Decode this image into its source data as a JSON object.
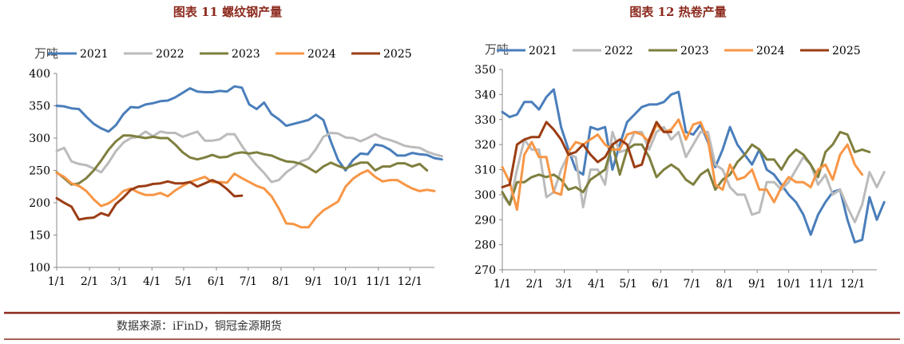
{
  "source": "数据来源：iFinD，铜冠金源期货",
  "colors": {
    "2021": "#4a7ebb",
    "2022": "#bbbbbb",
    "2023": "#7f7f3f",
    "2024": "#f79646",
    "2025": "#9b3d14",
    "title": "#8c2a1e",
    "divider": "#8c2a1e"
  },
  "chart_data": [
    {
      "type": "line",
      "title": "图表 11  螺纹钢产量",
      "ylabel": "万吨",
      "ylim": [
        100,
        400
      ],
      "yticks": [
        100,
        150,
        200,
        250,
        300,
        350,
        400
      ],
      "xlim": [
        0,
        51
      ],
      "x_ticks": [
        {
          "label": "1/1",
          "week": 0
        },
        {
          "label": "2/1",
          "week": 4.43
        },
        {
          "label": "3/1",
          "week": 8.43
        },
        {
          "label": "4/1",
          "week": 12.86
        },
        {
          "label": "5/1",
          "week": 17.14
        },
        {
          "label": "6/1",
          "week": 21.57
        },
        {
          "label": "7/1",
          "week": 25.86
        },
        {
          "label": "8/1",
          "week": 30.29
        },
        {
          "label": "9/1",
          "week": 34.71
        },
        {
          "label": "10/1",
          "week": 39.0
        },
        {
          "label": "11/1",
          "week": 43.43
        },
        {
          "label": "12/1",
          "week": 47.71
        }
      ],
      "legend": [
        "2021",
        "2022",
        "2023",
        "2024",
        "2025"
      ],
      "series": [
        {
          "name": "2021",
          "x_start": 0,
          "values": [
            350,
            349,
            346,
            345,
            333,
            322,
            315,
            310,
            320,
            337,
            348,
            347,
            352,
            354,
            357,
            358,
            363,
            370,
            377,
            372,
            371,
            371,
            373,
            372,
            380,
            378,
            352,
            345,
            355,
            337,
            329,
            319,
            322,
            325,
            328,
            336,
            328,
            295,
            266,
            250,
            266,
            276,
            275,
            290,
            288,
            282,
            273,
            273,
            277,
            275,
            274,
            269,
            267
          ]
        },
        {
          "name": "2022",
          "x_start": 0,
          "values": [
            280,
            285,
            264,
            260,
            258,
            253,
            247,
            262,
            280,
            293,
            300,
            302,
            310,
            303,
            310,
            308,
            308,
            302,
            306,
            310,
            296,
            296,
            298,
            306,
            306,
            288,
            272,
            258,
            246,
            232,
            235,
            247,
            255,
            264,
            268,
            283,
            302,
            308,
            307,
            301,
            300,
            295,
            300,
            306,
            300,
            297,
            293,
            288,
            286,
            285,
            279,
            275,
            272
          ]
        },
        {
          "name": "2023",
          "x_start": 0,
          "values": [
            247,
            238,
            228,
            230,
            238,
            250,
            265,
            282,
            295,
            304,
            304,
            302,
            300,
            302,
            300,
            300,
            290,
            278,
            270,
            267,
            270,
            274,
            270,
            271,
            276,
            278,
            276,
            278,
            275,
            273,
            268,
            264,
            263,
            260,
            254,
            247,
            256,
            262,
            257,
            253,
            258,
            262,
            262,
            250,
            256,
            256,
            261,
            261,
            256,
            260,
            250
          ]
        },
        {
          "name": "2024",
          "x_start": 0,
          "values": [
            246,
            240,
            230,
            226,
            218,
            205,
            195,
            199,
            207,
            218,
            222,
            216,
            212,
            212,
            215,
            210,
            219,
            226,
            232,
            236,
            240,
            232,
            232,
            231,
            245,
            238,
            232,
            226,
            222,
            210,
            191,
            168,
            167,
            162,
            162,
            177,
            188,
            195,
            202,
            225,
            237,
            245,
            250,
            240,
            233,
            235,
            235,
            228,
            222,
            218,
            220,
            218
          ]
        },
        {
          "name": "2025",
          "x_start": 0,
          "values": [
            207,
            200,
            194,
            174,
            176,
            177,
            184,
            180,
            198,
            208,
            220,
            225,
            226,
            229,
            230,
            233,
            230,
            230,
            232,
            225,
            230,
            235,
            230,
            221,
            210,
            211
          ]
        }
      ]
    },
    {
      "type": "line",
      "title": "图表 12  热卷产量",
      "ylabel": "万吨",
      "ylim": [
        270,
        350
      ],
      "yticks": [
        270,
        280,
        290,
        300,
        310,
        320,
        330,
        340,
        350
      ],
      "xlim": [
        0,
        51
      ],
      "x_ticks": [
        {
          "label": "1/1",
          "week": 0
        },
        {
          "label": "2/1",
          "week": 4.43
        },
        {
          "label": "3/1",
          "week": 8.43
        },
        {
          "label": "4/1",
          "week": 12.86
        },
        {
          "label": "5/1",
          "week": 17.14
        },
        {
          "label": "6/1",
          "week": 21.57
        },
        {
          "label": "7/1",
          "week": 25.86
        },
        {
          "label": "8/1",
          "week": 30.29
        },
        {
          "label": "9/1",
          "week": 34.71
        },
        {
          "label": "10/1",
          "week": 39.0
        },
        {
          "label": "11/1",
          "week": 43.43
        },
        {
          "label": "12/1",
          "week": 47.71
        }
      ],
      "legend": [
        "2021",
        "2022",
        "2023",
        "2024",
        "2025"
      ],
      "series": [
        {
          "name": "2021",
          "x_start": 0,
          "values": [
            333,
            331,
            332,
            337,
            337,
            334,
            339,
            342,
            327,
            318,
            310,
            308,
            327,
            326,
            327,
            310,
            320,
            329,
            332,
            335,
            336,
            336,
            337,
            340,
            341,
            325,
            324,
            328,
            321,
            311,
            318,
            327,
            320,
            316,
            312,
            318,
            310,
            308,
            304,
            300,
            297,
            292,
            284,
            292,
            297,
            301,
            302,
            290,
            281,
            282,
            299,
            290,
            297
          ]
        },
        {
          "name": "2022",
          "x_start": 0,
          "values": [
            300,
            296,
            310,
            322,
            318,
            318,
            299,
            301,
            310,
            316,
            315,
            295,
            310,
            310,
            304,
            325,
            317,
            318,
            325,
            325,
            318,
            325,
            327,
            322,
            325,
            315,
            320,
            325,
            325,
            312,
            310,
            303,
            300,
            300,
            292,
            293,
            305,
            305,
            302,
            305,
            310,
            315,
            312,
            304,
            308,
            300,
            302,
            295,
            289,
            296,
            309,
            303,
            309
          ]
        },
        {
          "name": "2023",
          "x_start": 0,
          "values": [
            301,
            296,
            305,
            305,
            307,
            308,
            307,
            308,
            306,
            302,
            303,
            301,
            306,
            308,
            310,
            320,
            308,
            318,
            320,
            320,
            315,
            307,
            310,
            312,
            310,
            306,
            304,
            308,
            310,
            302,
            306,
            308,
            313,
            316,
            320,
            318,
            314,
            314,
            310,
            315,
            318,
            316,
            312,
            307,
            317,
            320,
            325,
            324,
            317,
            318,
            317
          ]
        },
        {
          "name": "2024",
          "x_start": 0,
          "values": [
            311,
            305,
            294,
            316,
            321,
            315,
            315,
            301,
            300,
            317,
            321,
            320,
            322,
            324,
            320,
            318,
            318,
            324,
            325,
            324,
            321,
            328,
            325,
            326,
            330,
            322,
            328,
            329,
            322,
            304,
            302,
            312,
            306,
            307,
            310,
            302,
            302,
            297,
            303,
            307,
            305,
            305,
            303,
            310,
            312,
            306,
            316,
            320,
            312,
            308
          ]
        },
        {
          "name": "2025",
          "x_start": 0,
          "values": [
            303,
            304,
            320,
            322,
            323,
            323,
            329,
            326,
            322,
            316,
            317,
            320,
            316,
            313,
            315,
            320,
            322,
            320,
            311,
            312,
            322,
            329,
            325,
            325
          ]
        }
      ]
    }
  ]
}
